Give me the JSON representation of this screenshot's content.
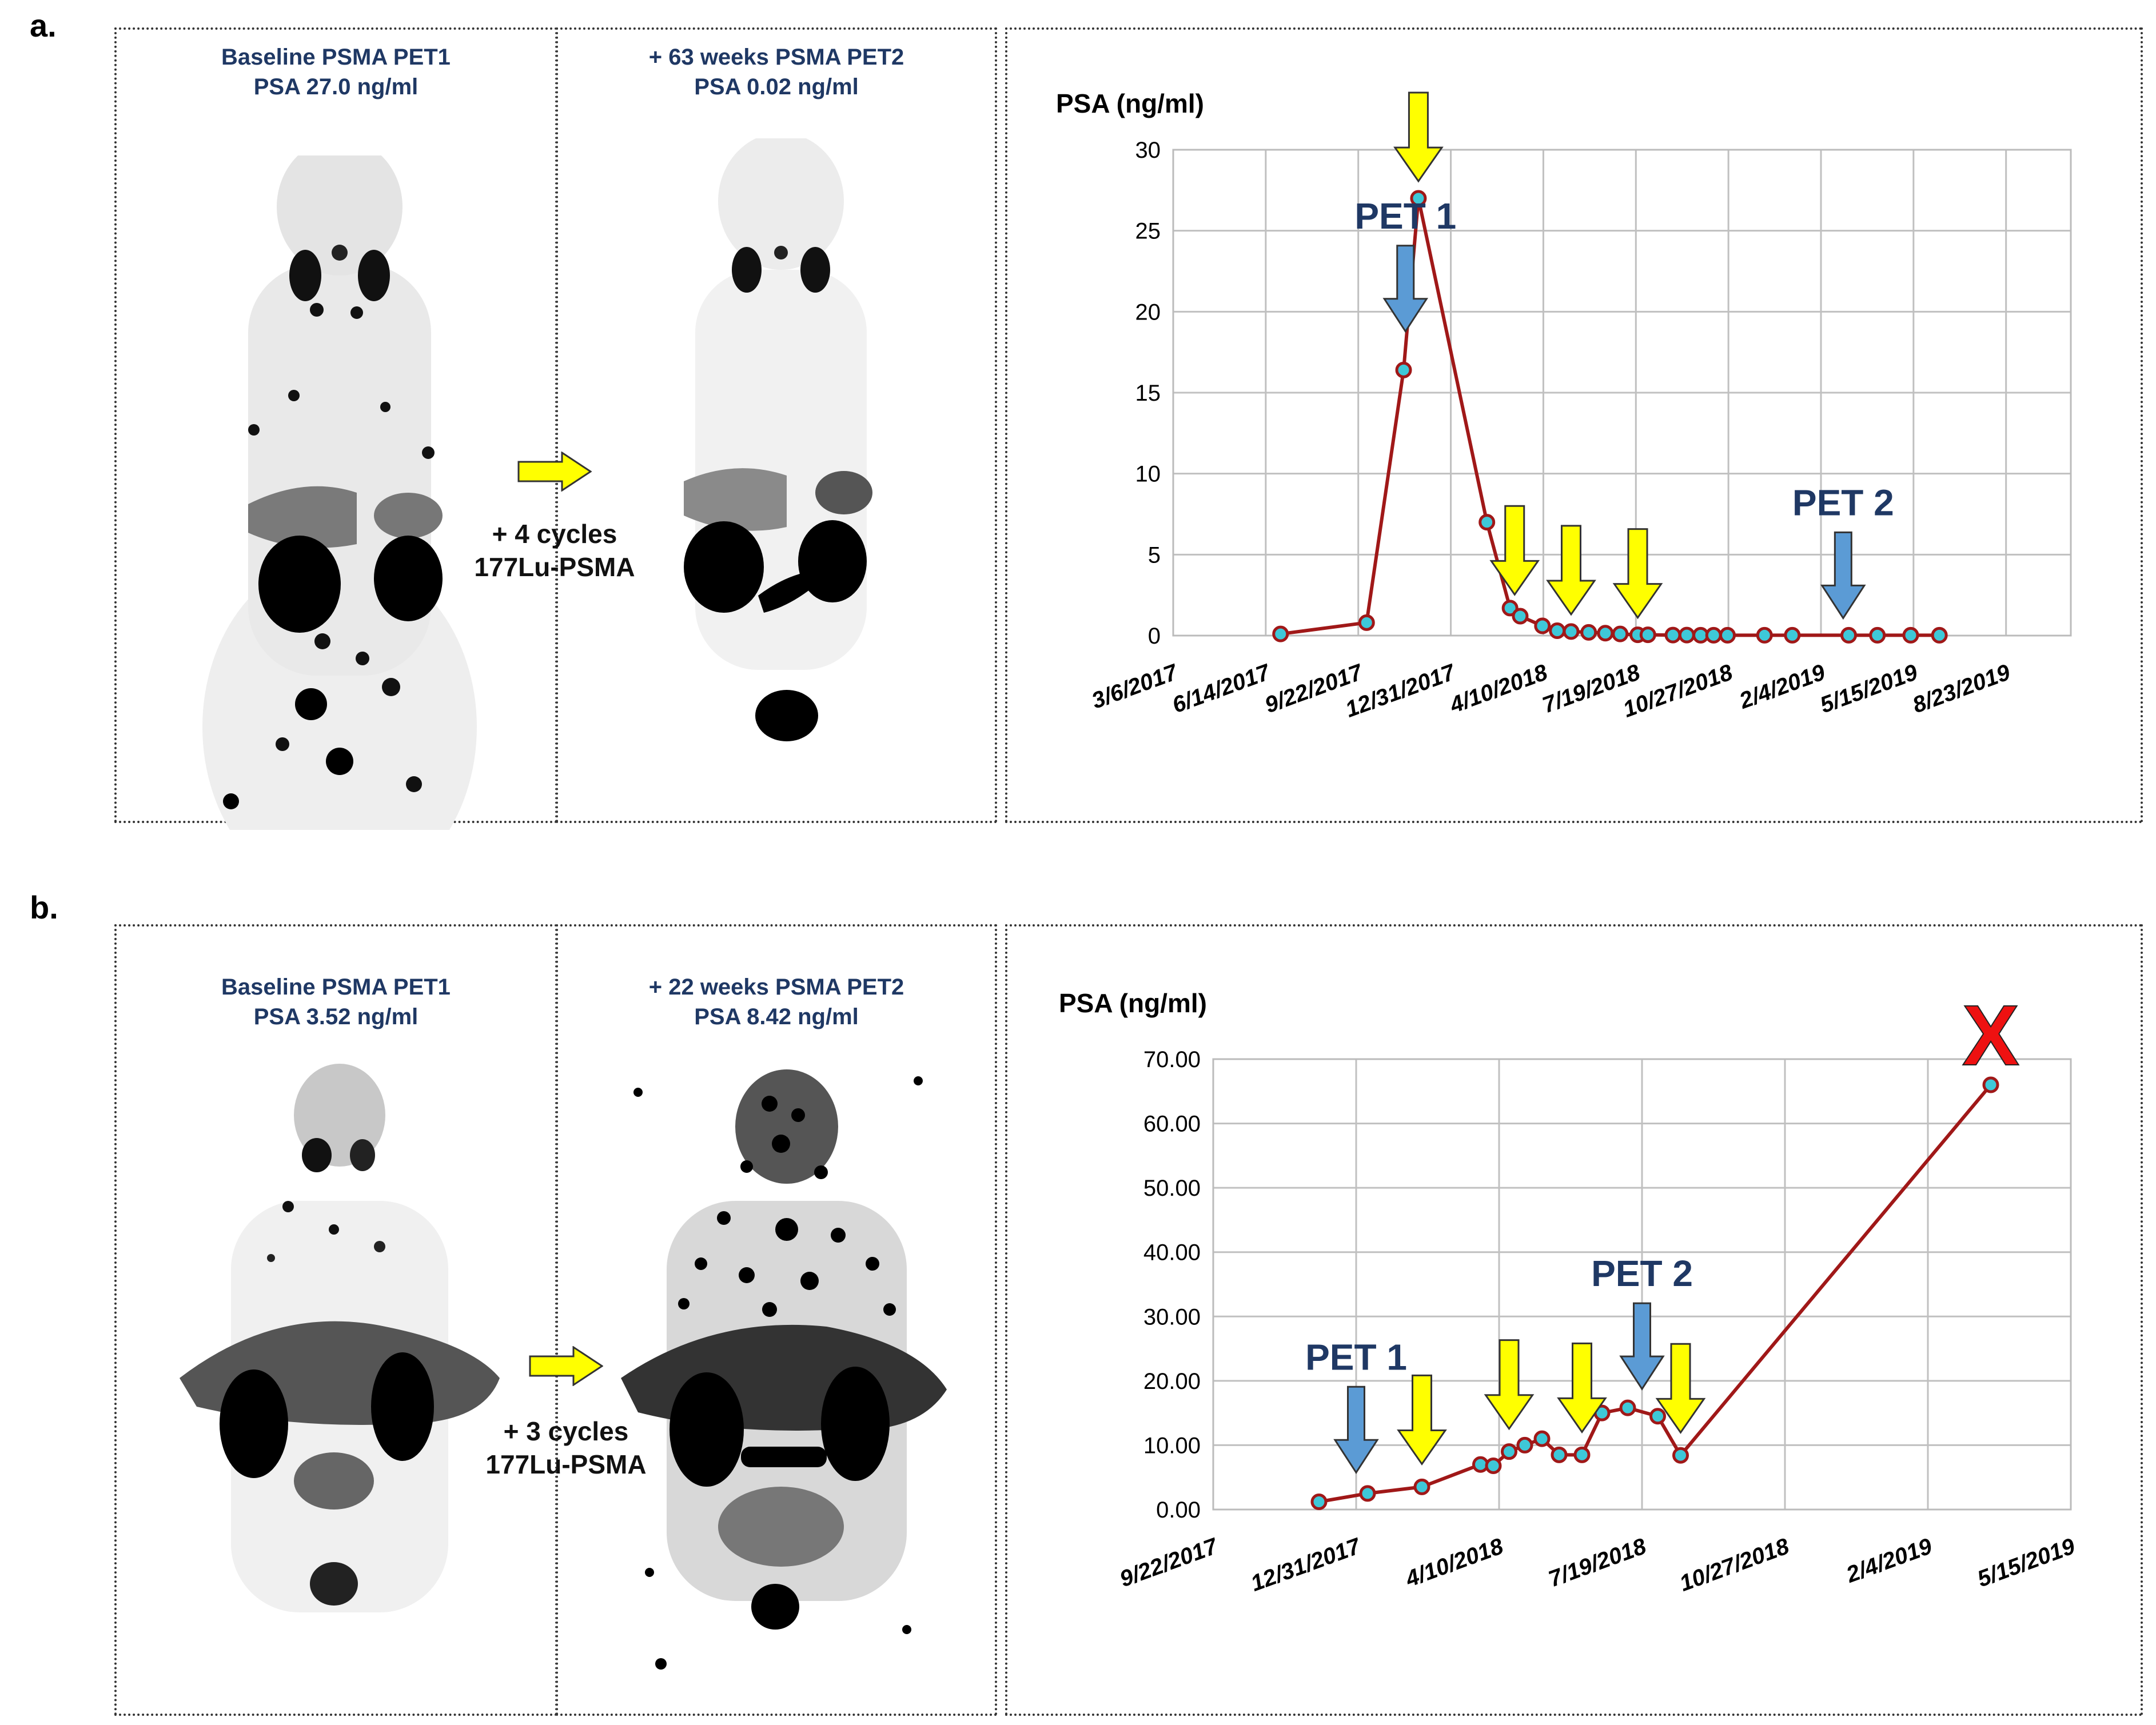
{
  "panels": [
    {
      "label": "a.",
      "pet1": {
        "line1": "Baseline PSMA PET1",
        "line2": "PSA 27.0 ng/ml"
      },
      "pet2": {
        "line1": "+ 63 weeks PSMA PET2",
        "line2": "PSA 0.02 ng/ml"
      },
      "therapy": {
        "line1": "+ 4 cycles",
        "line2": "177Lu-PSMA"
      }
    },
    {
      "label": "b.",
      "pet1": {
        "line1": "Baseline PSMA PET1",
        "line2": "PSA 3.52 ng/ml"
      },
      "pet2": {
        "line1": "+ 22 weeks PSMA PET2",
        "line2": "PSA 8.42 ng/ml"
      },
      "therapy": {
        "line1": "+ 3 cycles",
        "line2": "177Lu-PSMA"
      }
    }
  ],
  "colors": {
    "line": "#a01818",
    "marker_fill": "#3ec8d8",
    "pet_arrow": "#5b9bd5",
    "therapy_arrow": "#ffff00",
    "pet_text": "#1f3864",
    "death_mark": "#ee1111"
  },
  "chart_data": [
    {
      "type": "line",
      "ylabel": "PSA (ng/ml)",
      "ylim": [
        0,
        30
      ],
      "yticks": [
        "0",
        "5",
        "10",
        "15",
        "20",
        "25",
        "30"
      ],
      "xlim": [
        "2017-03-06",
        "2019-11-01"
      ],
      "xticks": [
        "3/6/2017",
        "6/14/2017",
        "9/22/2017",
        "12/31/2017",
        "4/10/2018",
        "7/19/2018",
        "10/27/2018",
        "2/4/2019",
        "5/15/2019",
        "8/23/2019"
      ],
      "grid": true,
      "series": [
        {
          "x": [
            "2017-06-30",
            "2017-10-01",
            "2017-11-10",
            "2017-11-26",
            "2018-02-08",
            "2018-03-05",
            "2018-03-16",
            "2018-04-09",
            "2018-04-25",
            "2018-05-10",
            "2018-05-29",
            "2018-06-16",
            "2018-07-02",
            "2018-07-21",
            "2018-08-01",
            "2018-08-28",
            "2018-09-12",
            "2018-09-27",
            "2018-10-11",
            "2018-10-26",
            "2018-12-05",
            "2019-01-04",
            "2019-03-06",
            "2019-04-06",
            "2019-05-12",
            "2019-06-12"
          ],
          "values": [
            0.1,
            0.8,
            16.4,
            27.0,
            7.0,
            1.7,
            1.2,
            0.6,
            0.3,
            0.25,
            0.2,
            0.15,
            0.1,
            0.05,
            0.05,
            0.03,
            0.03,
            0.02,
            0.02,
            0.02,
            0.02,
            0.02,
            0.02,
            0.02,
            0.02,
            0.02
          ]
        }
      ],
      "annotations": [
        {
          "text": "PET 1",
          "at": "2017-11-12",
          "arrow": "pet"
        },
        {
          "at": "2017-11-26",
          "arrow": "therapy"
        },
        {
          "at": "2018-03-10",
          "arrow": "therapy"
        },
        {
          "at": "2018-05-10",
          "arrow": "therapy"
        },
        {
          "at": "2018-07-21",
          "arrow": "therapy"
        },
        {
          "text": "PET 2",
          "at": "2019-02-28",
          "arrow": "pet"
        }
      ]
    },
    {
      "type": "line",
      "ylabel": "PSA (ng/ml)",
      "ylim": [
        0,
        70
      ],
      "yticks": [
        "0.00",
        "10.00",
        "20.00",
        "30.00",
        "40.00",
        "50.00",
        "60.00",
        "70.00"
      ],
      "xlim": [
        "2017-09-22",
        "2019-05-15"
      ],
      "xticks": [
        "9/22/2017",
        "12/31/2017",
        "4/10/2018",
        "7/19/2018",
        "10/27/2018",
        "2/4/2019",
        "5/15/2019"
      ],
      "grid": true,
      "series": [
        {
          "x": [
            "2017-12-05",
            "2018-01-08",
            "2018-02-15",
            "2018-03-28",
            "2018-04-06",
            "2018-04-17",
            "2018-04-28",
            "2018-05-10",
            "2018-05-22",
            "2018-06-07",
            "2018-06-21",
            "2018-07-09",
            "2018-07-30",
            "2018-08-15",
            "2019-03-20"
          ],
          "values": [
            1.2,
            2.5,
            3.52,
            7.0,
            6.8,
            9.0,
            10.0,
            11.0,
            8.5,
            8.5,
            15.0,
            15.8,
            14.5,
            8.42,
            66.0
          ]
        }
      ],
      "annotations": [
        {
          "text": "PET 1",
          "at": "2017-12-31",
          "arrow": "pet"
        },
        {
          "at": "2018-02-15",
          "arrow": "therapy"
        },
        {
          "at": "2018-04-17",
          "arrow": "therapy"
        },
        {
          "at": "2018-06-07",
          "arrow": "therapy"
        },
        {
          "text": "PET 2",
          "at": "2018-07-19",
          "arrow": "pet"
        },
        {
          "at": "2018-08-15",
          "arrow": "therapy"
        }
      ],
      "end_marker": "X"
    }
  ]
}
